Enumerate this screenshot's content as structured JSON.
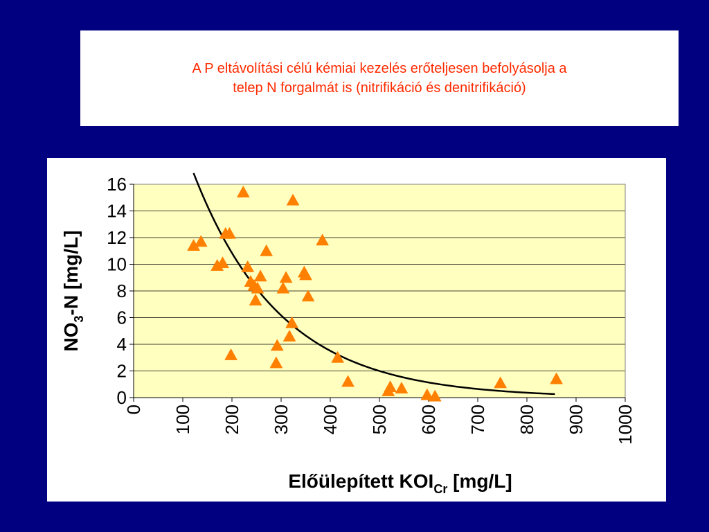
{
  "slide": {
    "title_line1": "A P eltávolítási célú kémiai kezelés erőteljesen befolyásolja a",
    "title_line2": "telep N forgalmát is (nitrifikáció és denitrifikáció)",
    "title_color": "#ff2a00",
    "background_color": "#000080"
  },
  "chart_data": {
    "type": "scatter",
    "xlabel_main": "Előülepített KOI",
    "xlabel_sub": "Cr",
    "xlabel_tail": " [mg/L]",
    "ylabel_head": "NO",
    "ylabel_sub": "3",
    "ylabel_tail": "-N [mg/L]",
    "xlim": [
      0,
      1000
    ],
    "ylim": [
      0,
      16
    ],
    "x_ticks": [
      "0",
      "100",
      "200",
      "300",
      "400",
      "500",
      "600",
      "700",
      "800",
      "900",
      "1000"
    ],
    "y_ticks": [
      "0",
      "2",
      "4",
      "6",
      "8",
      "10",
      "12",
      "14",
      "16"
    ],
    "grid": true,
    "plot_background": "#ffffc0",
    "marker": "triangle",
    "marker_color": "#ff8000",
    "trendline_color": "#000000",
    "points": [
      [
        122,
        11.4
      ],
      [
        137,
        11.7
      ],
      [
        170,
        9.9
      ],
      [
        181,
        10.1
      ],
      [
        187,
        12.3
      ],
      [
        195,
        12.3
      ],
      [
        198,
        3.2
      ],
      [
        223,
        15.4
      ],
      [
        232,
        9.8
      ],
      [
        238,
        8.7
      ],
      [
        245,
        8.4
      ],
      [
        248,
        7.3
      ],
      [
        252,
        8.2
      ],
      [
        258,
        9.1
      ],
      [
        270,
        11.0
      ],
      [
        290,
        2.6
      ],
      [
        292,
        3.9
      ],
      [
        304,
        8.2
      ],
      [
        310,
        9.0
      ],
      [
        317,
        4.6
      ],
      [
        322,
        5.6
      ],
      [
        324,
        14.8
      ],
      [
        347,
        9.4
      ],
      [
        350,
        9.2
      ],
      [
        355,
        7.6
      ],
      [
        384,
        11.8
      ],
      [
        415,
        3.0
      ],
      [
        436,
        1.2
      ],
      [
        518,
        0.5
      ],
      [
        522,
        0.8
      ],
      [
        545,
        0.7
      ],
      [
        597,
        0.2
      ],
      [
        613,
        0.1
      ],
      [
        746,
        1.1
      ],
      [
        860,
        1.4
      ]
    ],
    "trendline": {
      "type": "exponential",
      "x_range": [
        122,
        857
      ],
      "a": 33.5,
      "b": 0.00564
    }
  }
}
